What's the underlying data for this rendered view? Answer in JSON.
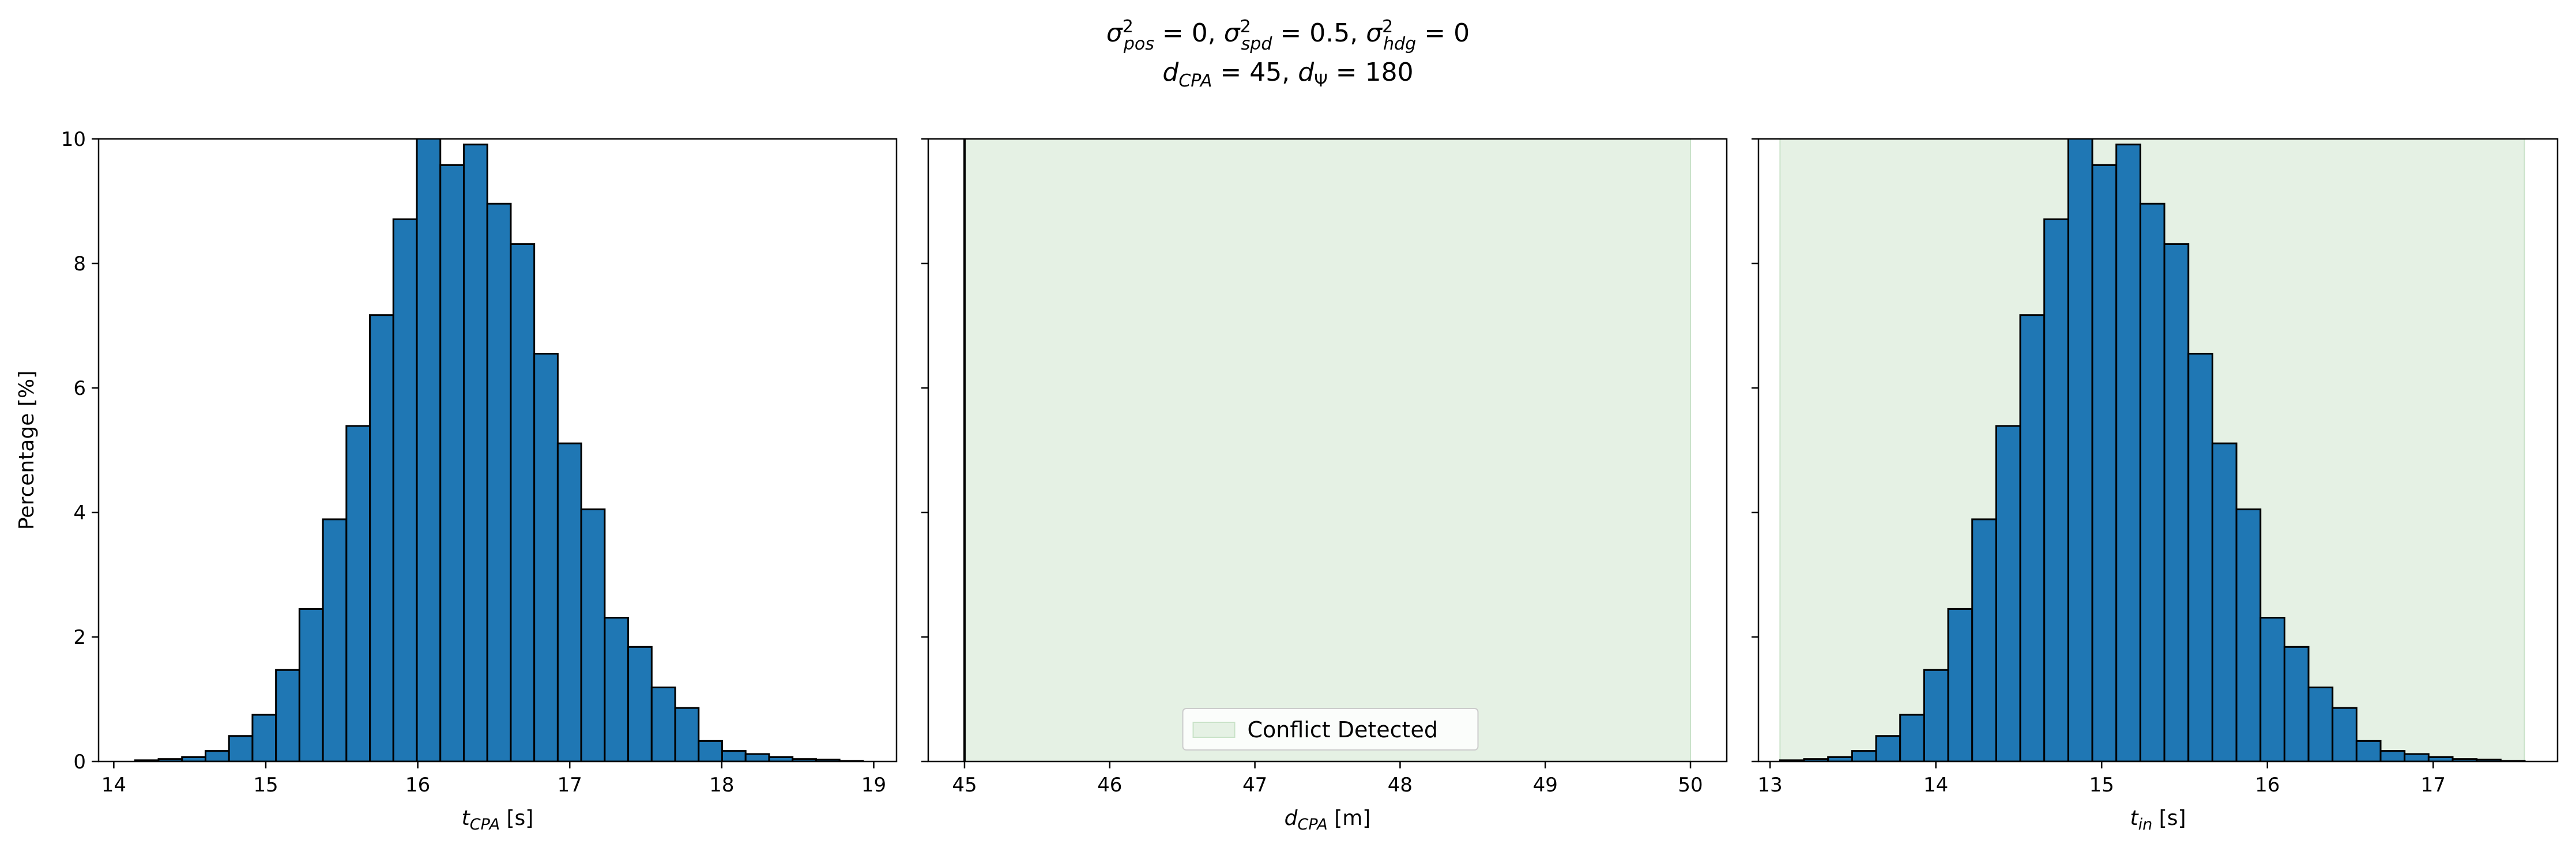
{
  "figure": {
    "title_line1": "σ²pos = 0, σ²spd = 0.5, σ²hdg = 0",
    "title_line2": "dCPA = 45, dΨ = 180"
  },
  "colors": {
    "bar_fill": "#1f77b4",
    "bar_edge": "#000000",
    "conflict_fill": "#e5f1e4",
    "conflict_edge": "#c9e2c8"
  },
  "chart_data": [
    {
      "type": "bar",
      "subtype": "histogram",
      "xlabel": "t_CPA [s]",
      "ylabel": "Percentage [%]",
      "xlim": [
        13.9,
        19.15
      ],
      "ylim": [
        0,
        10
      ],
      "xticks": [
        14,
        15,
        16,
        17,
        18,
        19
      ],
      "yticks": [
        0,
        2,
        4,
        6,
        8,
        10
      ],
      "bin_start": 14.14,
      "bin_width": 0.1545,
      "values": [
        0.02,
        0.04,
        0.07,
        0.17,
        0.41,
        0.75,
        1.47,
        2.45,
        3.89,
        5.39,
        7.17,
        8.71,
        10.08,
        9.58,
        9.91,
        8.96,
        8.31,
        6.55,
        5.11,
        4.05,
        2.31,
        1.84,
        1.19,
        0.86,
        0.33,
        0.17,
        0.12,
        0.07,
        0.04,
        0.03,
        0.01
      ]
    },
    {
      "type": "area",
      "xlabel": "d_CPA [m]",
      "xlim": [
        44.75,
        50.25
      ],
      "ylim": [
        0,
        10
      ],
      "xticks": [
        45,
        46,
        47,
        48,
        49,
        50
      ],
      "yticks": [
        0,
        2,
        4,
        6,
        8,
        10
      ],
      "bar_x": 45,
      "bar_value": 100,
      "conflict_region": [
        45,
        50
      ],
      "legend": [
        "Conflict Detected"
      ],
      "legend_position": "lower center"
    },
    {
      "type": "bar",
      "subtype": "histogram",
      "xlabel": "t_in [s]",
      "xlim": [
        12.93,
        17.75
      ],
      "ylim": [
        0,
        10
      ],
      "xticks": [
        13,
        14,
        15,
        16,
        17
      ],
      "yticks": [
        0,
        2,
        4,
        6,
        8,
        10
      ],
      "conflict_region": [
        13.06,
        17.55
      ],
      "bin_start": 13.06,
      "bin_width": 0.1449,
      "values": [
        0.02,
        0.04,
        0.07,
        0.17,
        0.41,
        0.75,
        1.47,
        2.45,
        3.89,
        5.39,
        7.17,
        8.71,
        10.08,
        9.58,
        9.91,
        8.96,
        8.31,
        6.55,
        5.11,
        4.05,
        2.31,
        1.84,
        1.19,
        0.86,
        0.33,
        0.17,
        0.12,
        0.07,
        0.04,
        0.03,
        0.01
      ]
    }
  ]
}
